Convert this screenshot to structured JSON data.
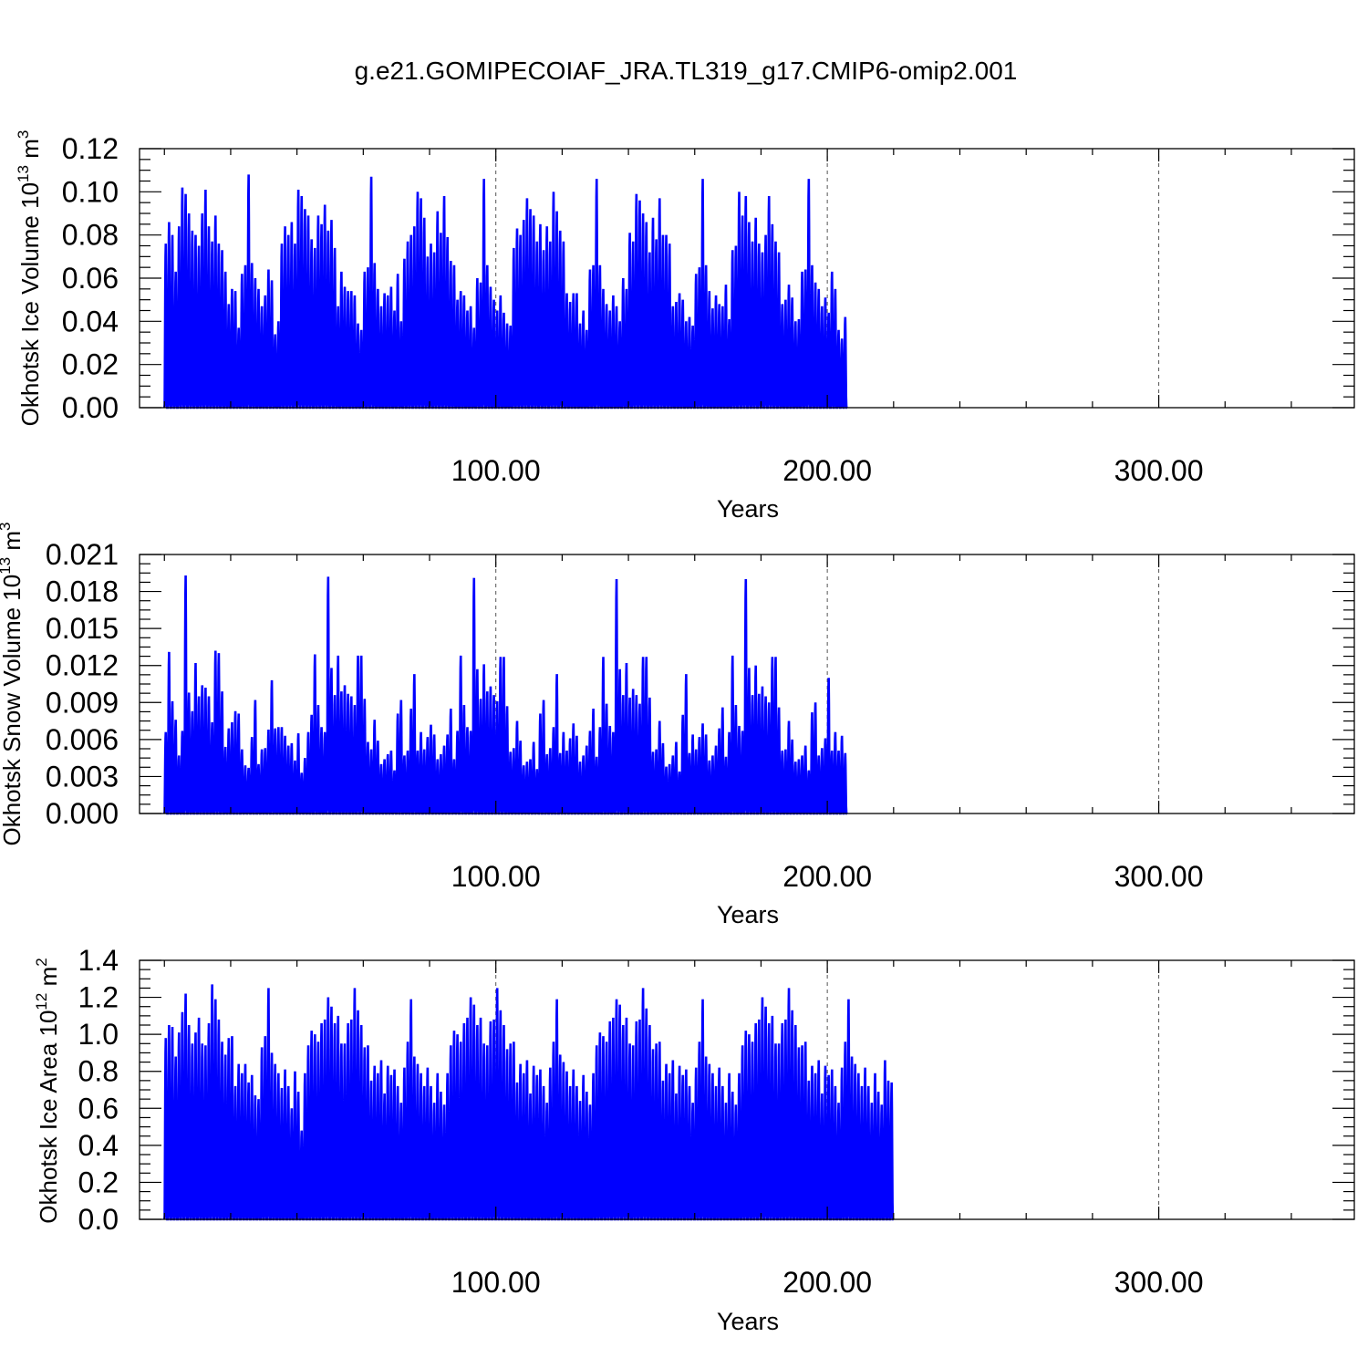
{
  "title": "g.e21.GOMIPECOIAF_JRA.TL319_g17.CMIP6-omip2.001",
  "colors": {
    "series": "#0000ff",
    "axis": "#000000",
    "grid": "#555555"
  },
  "chart_data": [
    {
      "type": "line",
      "ylabel": "Okhotsk Ice Volume 10",
      "ylabel_sup": "13",
      "ylabel_unit": " m",
      "ylabel_unit_sup": "3",
      "xlabel": "Years",
      "xlim": [
        -7.5,
        359
      ],
      "ylim": [
        0,
        0.12
      ],
      "xticks": [
        100,
        200,
        300
      ],
      "xtick_labels": [
        "100.00",
        "200.00",
        "300.00"
      ],
      "yticks": [
        0,
        0.02,
        0.04,
        0.06,
        0.08,
        0.1,
        0.12
      ],
      "ytick_labels": [
        "0.00",
        "0.02",
        "0.04",
        "0.06",
        "0.08",
        "0.10",
        "0.12"
      ],
      "grid_x": true,
      "series": [
        {
          "sampling": "monthly, minimum 0 each year",
          "x_start": 0,
          "annual_max": [
            0.076,
            0.086,
            0.08,
            0.063,
            0.084,
            0.102,
            0.099,
            0.09,
            0.082,
            0.08,
            0.075,
            0.09,
            0.101,
            0.084,
            0.077,
            0.089,
            0.076,
            0.073,
            0.063,
            0.048,
            0.055,
            0.054,
            0.037,
            0.062,
            0.066,
            0.108,
            0.067,
            0.06,
            0.055,
            0.047,
            0.052,
            0.064,
            0.059,
            0.034,
            0.04,
            0.076,
            0.084,
            0.08,
            0.086,
            0.076,
            0.101,
            0.098,
            0.092,
            0.089,
            0.078,
            0.074,
            0.089,
            0.085,
            0.094,
            0.082,
            0.087,
            0.074,
            0.047,
            0.063,
            0.056,
            0.054,
            0.054,
            0.052,
            0.039,
            0.036,
            0.063,
            0.065,
            0.107,
            0.067,
            0.055,
            0.047,
            0.053,
            0.052,
            0.056,
            0.045,
            0.062,
            0.04,
            0.069,
            0.077,
            0.08,
            0.084,
            0.1,
            0.097,
            0.088,
            0.07,
            0.076,
            0.072,
            0.091,
            0.081,
            0.098,
            0.079,
            0.068,
            0.066,
            0.05,
            0.054,
            0.052,
            0.045,
            0.047,
            0.037,
            0.06,
            0.058,
            0.106,
            0.066,
            0.056,
            0.05,
            0.045,
            0.052,
            0.044,
            0.039,
            0.038,
            0.074,
            0.083,
            0.08,
            0.087,
            0.097,
            0.092,
            0.089,
            0.077,
            0.085,
            0.073,
            0.084,
            0.077,
            0.1,
            0.091,
            0.082,
            0.077,
            0.053,
            0.049,
            0.053,
            0.053,
            0.039,
            0.045,
            0.036,
            0.064,
            0.066,
            0.106,
            0.066,
            0.055,
            0.048,
            0.045,
            0.052,
            0.047,
            0.04,
            0.06,
            0.055,
            0.081,
            0.077,
            0.099,
            0.096,
            0.09,
            0.086,
            0.072,
            0.088,
            0.078,
            0.097,
            0.08,
            0.08,
            0.076,
            0.047,
            0.049,
            0.053,
            0.05,
            0.04,
            0.042,
            0.038,
            0.062,
            0.065,
            0.106,
            0.066,
            0.054,
            0.046,
            0.052,
            0.048,
            0.047,
            0.057,
            0.041,
            0.073,
            0.075,
            0.1,
            0.089,
            0.098,
            0.086,
            0.077,
            0.088,
            0.076,
            0.072,
            0.08,
            0.098,
            0.085,
            0.077,
            0.072,
            0.048,
            0.05,
            0.057,
            0.051,
            0.04,
            0.041,
            0.063,
            0.064,
            0.106,
            0.066,
            0.058,
            0.055,
            0.047,
            0.051,
            0.044,
            0.063,
            0.055,
            0.036,
            0.032,
            0.042
          ]
        }
      ]
    },
    {
      "type": "line",
      "ylabel": "Okhotsk Snow Volume 10",
      "ylabel_sup": "13",
      "ylabel_unit": " m",
      "ylabel_unit_sup": "3",
      "xlabel": "Years",
      "xlim": [
        -7.5,
        359
      ],
      "ylim": [
        0,
        0.021
      ],
      "xticks": [
        100,
        200,
        300
      ],
      "xtick_labels": [
        "100.00",
        "200.00",
        "300.00"
      ],
      "yticks": [
        0,
        0.003,
        0.006,
        0.009,
        0.012,
        0.015,
        0.018,
        0.021
      ],
      "ytick_labels": [
        "0.000",
        "0.003",
        "0.006",
        "0.009",
        "0.012",
        "0.015",
        "0.018",
        "0.021"
      ],
      "grid_x": true,
      "series": [
        {
          "sampling": "monthly, minimum 0 each year",
          "x_start": 0,
          "annual_max": [
            0.0066,
            0.0131,
            0.0091,
            0.0076,
            0.0047,
            0.0067,
            0.0193,
            0.0098,
            0.0083,
            0.0122,
            0.0095,
            0.0104,
            0.0102,
            0.0095,
            0.0074,
            0.0132,
            0.013,
            0.0099,
            0.0054,
            0.0069,
            0.0074,
            0.0083,
            0.0081,
            0.0052,
            0.0039,
            0.0037,
            0.0062,
            0.0092,
            0.004,
            0.0052,
            0.0053,
            0.0068,
            0.0108,
            0.0069,
            0.007,
            0.007,
            0.0063,
            0.0055,
            0.0057,
            0.0043,
            0.0065,
            0.0033,
            0.0045,
            0.0066,
            0.008,
            0.0129,
            0.0088,
            0.007,
            0.0066,
            0.0192,
            0.0118,
            0.0096,
            0.0128,
            0.0099,
            0.0104,
            0.0097,
            0.0095,
            0.0088,
            0.0128,
            0.0128,
            0.0093,
            0.0058,
            0.0052,
            0.0076,
            0.0059,
            0.004,
            0.0044,
            0.0048,
            0.0051,
            0.0035,
            0.0081,
            0.0092,
            0.0047,
            0.0051,
            0.0085,
            0.0113,
            0.0051,
            0.0066,
            0.0052,
            0.0062,
            0.0072,
            0.0064,
            0.0044,
            0.0048,
            0.0055,
            0.0064,
            0.0085,
            0.0044,
            0.0067,
            0.0128,
            0.0088,
            0.007,
            0.0067,
            0.0191,
            0.0117,
            0.0093,
            0.0121,
            0.0099,
            0.0103,
            0.0096,
            0.0091,
            0.0127,
            0.0127,
            0.0087,
            0.005,
            0.0053,
            0.0075,
            0.0059,
            0.0039,
            0.0042,
            0.0044,
            0.0058,
            0.0036,
            0.0081,
            0.0092,
            0.0048,
            0.0053,
            0.007,
            0.0113,
            0.0049,
            0.0066,
            0.0051,
            0.0061,
            0.0073,
            0.0063,
            0.0042,
            0.0047,
            0.0055,
            0.0067,
            0.0085,
            0.0046,
            0.007,
            0.0127,
            0.0089,
            0.0071,
            0.0066,
            0.019,
            0.0117,
            0.0096,
            0.0122,
            0.0094,
            0.0101,
            0.0096,
            0.0089,
            0.0127,
            0.0127,
            0.0094,
            0.005,
            0.0052,
            0.0075,
            0.0057,
            0.0038,
            0.004,
            0.0047,
            0.0058,
            0.0034,
            0.008,
            0.0113,
            0.0049,
            0.0064,
            0.0052,
            0.0062,
            0.0073,
            0.0064,
            0.0043,
            0.0047,
            0.0055,
            0.0069,
            0.0086,
            0.0046,
            0.0066,
            0.0128,
            0.0088,
            0.0071,
            0.0067,
            0.019,
            0.0118,
            0.0096,
            0.012,
            0.0097,
            0.0103,
            0.0095,
            0.009,
            0.0127,
            0.0127,
            0.0086,
            0.0051,
            0.0052,
            0.0075,
            0.006,
            0.0042,
            0.0044,
            0.0047,
            0.0055,
            0.0035,
            0.0082,
            0.009,
            0.0047,
            0.0053,
            0.0061,
            0.011,
            0.0051,
            0.0066,
            0.0051,
            0.0063,
            0.0049
          ]
        }
      ]
    },
    {
      "type": "line",
      "ylabel": "Okhotsk Ice Area 10",
      "ylabel_sup": "12",
      "ylabel_unit": " m",
      "ylabel_unit_sup": "2",
      "xlabel": "Years",
      "xlim": [
        -7.5,
        359
      ],
      "ylim": [
        0,
        1.4
      ],
      "xticks": [
        100,
        200,
        300
      ],
      "xtick_labels": [
        "100.00",
        "200.00",
        "300.00"
      ],
      "yticks": [
        0,
        0.2,
        0.4,
        0.6,
        0.8,
        1.0,
        1.2,
        1.4
      ],
      "ytick_labels": [
        "0.0",
        "0.2",
        "0.4",
        "0.6",
        "0.8",
        "1.0",
        "1.2",
        "1.4"
      ],
      "grid_x": true,
      "series": [
        {
          "sampling": "monthly, minimum 0 each year",
          "x_start": 0,
          "annual_max": [
            0.98,
            1.05,
            1.04,
            0.88,
            1.01,
            1.12,
            1.22,
            1.05,
            0.95,
            1.01,
            1.09,
            0.95,
            0.94,
            1.06,
            1.27,
            1.19,
            1.08,
            0.96,
            0.89,
            0.98,
            0.99,
            0.72,
            0.84,
            0.79,
            0.84,
            0.74,
            0.78,
            0.67,
            0.65,
            0.93,
            0.99,
            1.25,
            0.9,
            0.84,
            0.79,
            0.71,
            0.81,
            0.72,
            0.6,
            0.8,
            0.69,
            0.48,
            0.79,
            0.94,
            1.02,
            1.0,
            0.96,
            1.06,
            1.08,
            1.2,
            1.15,
            1.06,
            1.1,
            0.95,
            0.95,
            1.06,
            1.08,
            1.25,
            1.13,
            1.05,
            0.93,
            0.94,
            0.75,
            0.83,
            0.79,
            0.86,
            0.68,
            0.83,
            0.78,
            0.81,
            0.72,
            0.63,
            0.82,
            0.96,
            1.19,
            0.88,
            0.84,
            0.79,
            0.72,
            0.82,
            0.72,
            0.63,
            0.79,
            0.69,
            0.62,
            0.79,
            0.94,
            1.02,
            1.0,
            0.96,
            1.06,
            1.09,
            1.2,
            1.16,
            1.05,
            1.09,
            0.95,
            0.94,
            1.07,
            1.08,
            1.25,
            1.13,
            1.05,
            0.92,
            0.95,
            0.96,
            0.74,
            0.84,
            0.79,
            0.86,
            0.68,
            0.83,
            0.78,
            0.81,
            0.72,
            0.63,
            0.82,
            0.96,
            1.19,
            0.89,
            0.85,
            0.8,
            0.72,
            0.81,
            0.72,
            0.64,
            0.78,
            0.69,
            0.62,
            0.79,
            0.94,
            1.01,
            0.99,
            0.96,
            1.07,
            1.09,
            1.19,
            1.16,
            1.05,
            1.09,
            0.95,
            0.94,
            1.07,
            1.08,
            1.25,
            1.14,
            1.05,
            0.92,
            0.95,
            0.96,
            0.75,
            0.84,
            0.79,
            0.86,
            0.68,
            0.83,
            0.78,
            0.81,
            0.72,
            0.63,
            0.82,
            0.96,
            1.19,
            0.88,
            0.84,
            0.79,
            0.72,
            0.82,
            0.72,
            0.63,
            0.79,
            0.69,
            0.62,
            0.79,
            0.94,
            1.02,
            1.0,
            0.96,
            1.06,
            1.08,
            1.2,
            1.15,
            1.06,
            1.1,
            0.95,
            0.95,
            1.06,
            1.08,
            1.25,
            1.13,
            1.05,
            0.93,
            0.94,
            0.96,
            0.75,
            0.83,
            0.79,
            0.86,
            0.68,
            0.83,
            0.78,
            0.81,
            0.72,
            0.63,
            0.82,
            0.96,
            1.19,
            0.88,
            0.84,
            0.79,
            0.72,
            0.82,
            0.72,
            0.63,
            0.79,
            0.69,
            0.62,
            0.86,
            0.75,
            0.74
          ]
        }
      ]
    }
  ]
}
